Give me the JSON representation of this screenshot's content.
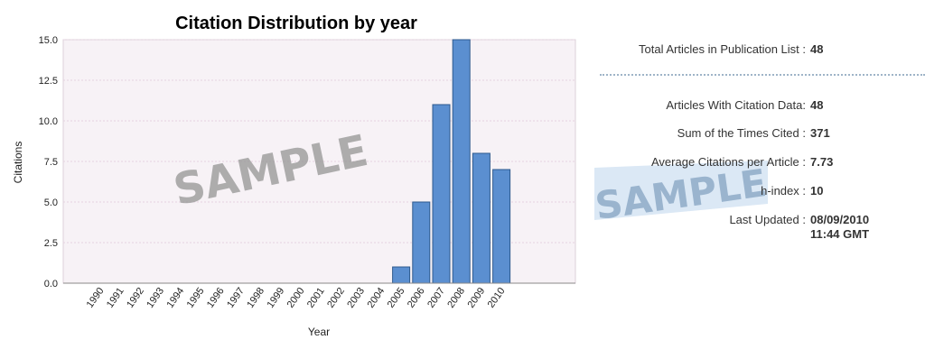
{
  "chart_data": {
    "type": "bar",
    "title": "Citation Distribution by year",
    "xlabel": "Year",
    "ylabel": "Citations",
    "categories": [
      "1990",
      "1991",
      "1992",
      "1993",
      "1994",
      "1995",
      "1996",
      "1997",
      "1998",
      "1999",
      "2000",
      "2001",
      "2002",
      "2003",
      "2004",
      "2005",
      "2006",
      "2007",
      "2008",
      "2009",
      "2010"
    ],
    "values": [
      0,
      0,
      0,
      0,
      0,
      0,
      0,
      0,
      0,
      0,
      0,
      0,
      0,
      0,
      0,
      1,
      5,
      11,
      15,
      8,
      7
    ],
    "ylim": [
      0,
      15.0
    ],
    "yticks": [
      "0.0",
      "2.5",
      "5.0",
      "7.5",
      "10.0",
      "12.5",
      "15.0"
    ],
    "grid": true,
    "bar_color": "#5b8fd0",
    "bar_edge_color": "#2e5a8e",
    "plot_background": "#f7f2f6",
    "watermark": "SAMPLE"
  },
  "stats": {
    "total_articles": {
      "label": "Total Articles in Publication List :",
      "value": "48"
    },
    "with_citation_data": {
      "label": "Articles With Citation Data:",
      "value": "48"
    },
    "sum_times_cited": {
      "label": "Sum of the Times Cited :",
      "value": "371"
    },
    "avg_citations": {
      "label": "Average Citations per Article :",
      "value": "7.73"
    },
    "h_index": {
      "label": "h-index :",
      "value": "10"
    },
    "last_updated": {
      "label": "Last Updated :",
      "date": "08/09/2010",
      "time": "11:44 GMT"
    },
    "watermark": "SAMPLE"
  }
}
